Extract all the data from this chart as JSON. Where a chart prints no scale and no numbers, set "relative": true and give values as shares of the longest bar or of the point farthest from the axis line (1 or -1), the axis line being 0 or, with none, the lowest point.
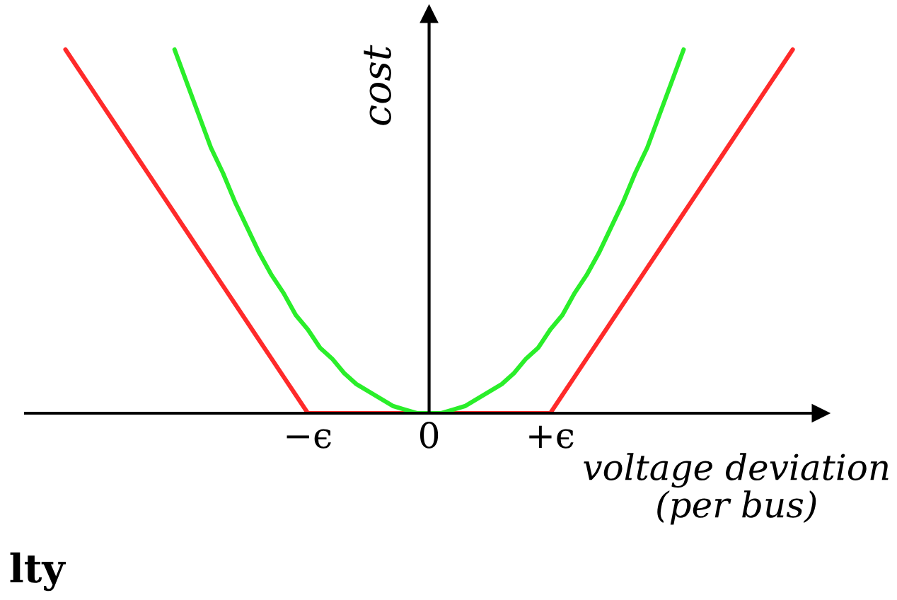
{
  "chart_data": {
    "type": "line",
    "relative": true,
    "xlabel": "voltage deviation\n(per bus)",
    "ylabel": "cost",
    "categories": [
      null,
      null,
      null,
      null,
      null,
      null,
      null,
      null,
      null,
      null,
      null,
      null,
      null,
      null,
      null,
      null,
      null,
      null,
      null,
      null,
      "−ϵ",
      null,
      null,
      null,
      null,
      null,
      null,
      null,
      null,
      null,
      "0",
      null,
      null,
      null,
      null,
      null,
      null,
      null,
      null,
      null,
      "+ϵ",
      null,
      null,
      null,
      null,
      null,
      null,
      null,
      null,
      null,
      null,
      null,
      null,
      null,
      null,
      null,
      null,
      null,
      null,
      null,
      null
    ],
    "series": [
      {
        "color": "#ff2a2a",
        "values": [
          1,
          0.95,
          0.9,
          0.85,
          0.8,
          0.75,
          0.7,
          0.65,
          0.6,
          0.55,
          0.5,
          0.45,
          0.4,
          0.35,
          0.3,
          0.25,
          0.2,
          0.15,
          0.1,
          0.05,
          0,
          0,
          0,
          0,
          0,
          0,
          0,
          0,
          0,
          0,
          0,
          0,
          0,
          0,
          0,
          0,
          0,
          0,
          0,
          0,
          0,
          0.05,
          0.1,
          0.15,
          0.2,
          0.25,
          0.3,
          0.35,
          0.4,
          0.45,
          0.5,
          0.55,
          0.6,
          0.65,
          0.7,
          0.75,
          0.8,
          0.85,
          0.9,
          0.95,
          1
        ]
      },
      {
        "color": "#2aee2a",
        "values": [
          null,
          null,
          null,
          null,
          null,
          null,
          null,
          null,
          null,
          1,
          0.91,
          0.82,
          0.73,
          0.66,
          0.58,
          0.51,
          0.44,
          0.38,
          0.33,
          0.27,
          0.23,
          0.18,
          0.15,
          0.11,
          0.08,
          0.06,
          0.04,
          0.02,
          0.01,
          0,
          0,
          0,
          0.01,
          0.02,
          0.04,
          0.06,
          0.08,
          0.11,
          0.15,
          0.18,
          0.23,
          0.27,
          0.33,
          0.38,
          0.44,
          0.51,
          0.58,
          0.66,
          0.73,
          0.82,
          0.91,
          1,
          null,
          null,
          null,
          null,
          null,
          null,
          null,
          null,
          null
        ]
      }
    ],
    "annotations": [
      "lty"
    ],
    "grid": false,
    "marker": "none",
    "line_style": "solid"
  }
}
